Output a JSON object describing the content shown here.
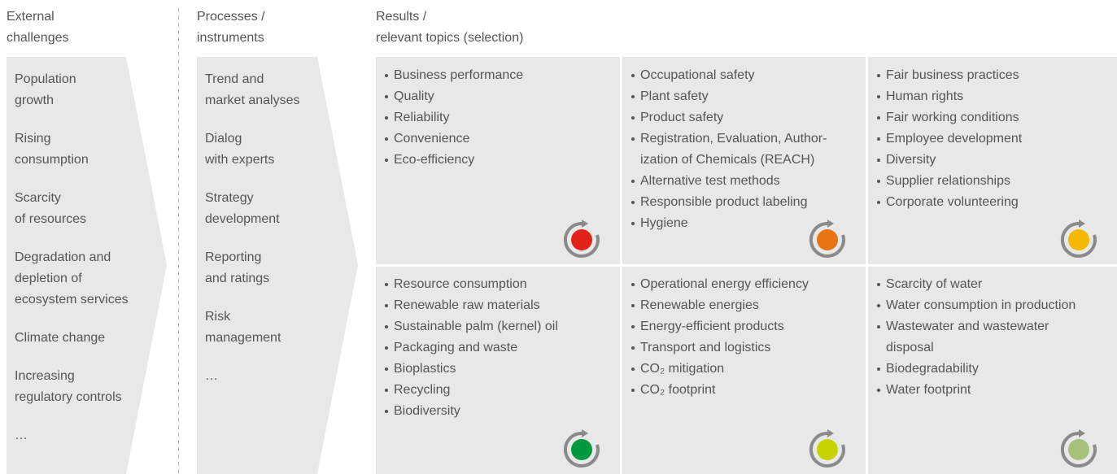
{
  "columns": [
    {
      "header": [
        "External",
        "challenges"
      ],
      "items": [
        [
          "Population",
          "growth"
        ],
        [
          "Rising",
          "consumption"
        ],
        [
          "Scarcity",
          "of resources"
        ],
        [
          "Degradation and",
          "depletion of",
          "ecosystem services"
        ],
        [
          "Climate change"
        ],
        [
          "Increasing",
          "regulatory controls"
        ],
        [
          "…"
        ]
      ]
    },
    {
      "header": [
        "Processes /",
        "instruments"
      ],
      "items": [
        [
          "Trend and",
          "market analyses"
        ],
        [
          "Dialog",
          "with experts"
        ],
        [
          "Strategy",
          "development"
        ],
        [
          "Reporting",
          "and ratings"
        ],
        [
          "Risk",
          "management"
        ],
        [
          "…"
        ]
      ]
    }
  ],
  "results": {
    "header": [
      "Results /",
      "relevant topics (selection)"
    ],
    "cells": [
      {
        "items": [
          [
            "Business performance"
          ],
          [
            "Quality"
          ],
          [
            "Reliability"
          ],
          [
            "Convenience"
          ],
          [
            "Eco-efficiency"
          ]
        ]
      },
      {
        "items": [
          [
            "Occupational safety"
          ],
          [
            "Plant safety"
          ],
          [
            "Product safety"
          ],
          [
            "Registration, Evaluation, Author-",
            "ization of Chemicals (REACH)"
          ],
          [
            "Alternative test methods"
          ],
          [
            "Responsible product labeling"
          ],
          [
            "Hygiene"
          ]
        ]
      },
      {
        "items": [
          [
            "Fair business practices"
          ],
          [
            "Human rights"
          ],
          [
            "Fair working conditions"
          ],
          [
            "Employee development"
          ],
          [
            "Diversity"
          ],
          [
            "Supplier relationships"
          ],
          [
            "Corporate volunteering"
          ]
        ]
      },
      {
        "items": [
          [
            "Resource consumption"
          ],
          [
            "Renewable raw materials"
          ],
          [
            "Sustainable palm (kernel) oil"
          ],
          [
            "Packaging and waste"
          ],
          [
            "Bioplastics"
          ],
          [
            "Recycling"
          ],
          [
            "Biodiversity"
          ]
        ]
      },
      {
        "items": [
          [
            "Operational energy efficiency"
          ],
          [
            "Renewable energies"
          ],
          [
            "Energy-efficient products"
          ],
          [
            "Transport and logistics"
          ],
          [
            "CO₂ mitigation"
          ],
          [
            "CO₂ footprint"
          ]
        ]
      },
      {
        "items": [
          [
            "Scarcity of water"
          ],
          [
            "Water consumption in production"
          ],
          [
            "Wastewater and wastewater",
            "disposal"
          ],
          [
            "Biodegradability"
          ],
          [
            "Water footprint"
          ]
        ]
      }
    ]
  }
}
